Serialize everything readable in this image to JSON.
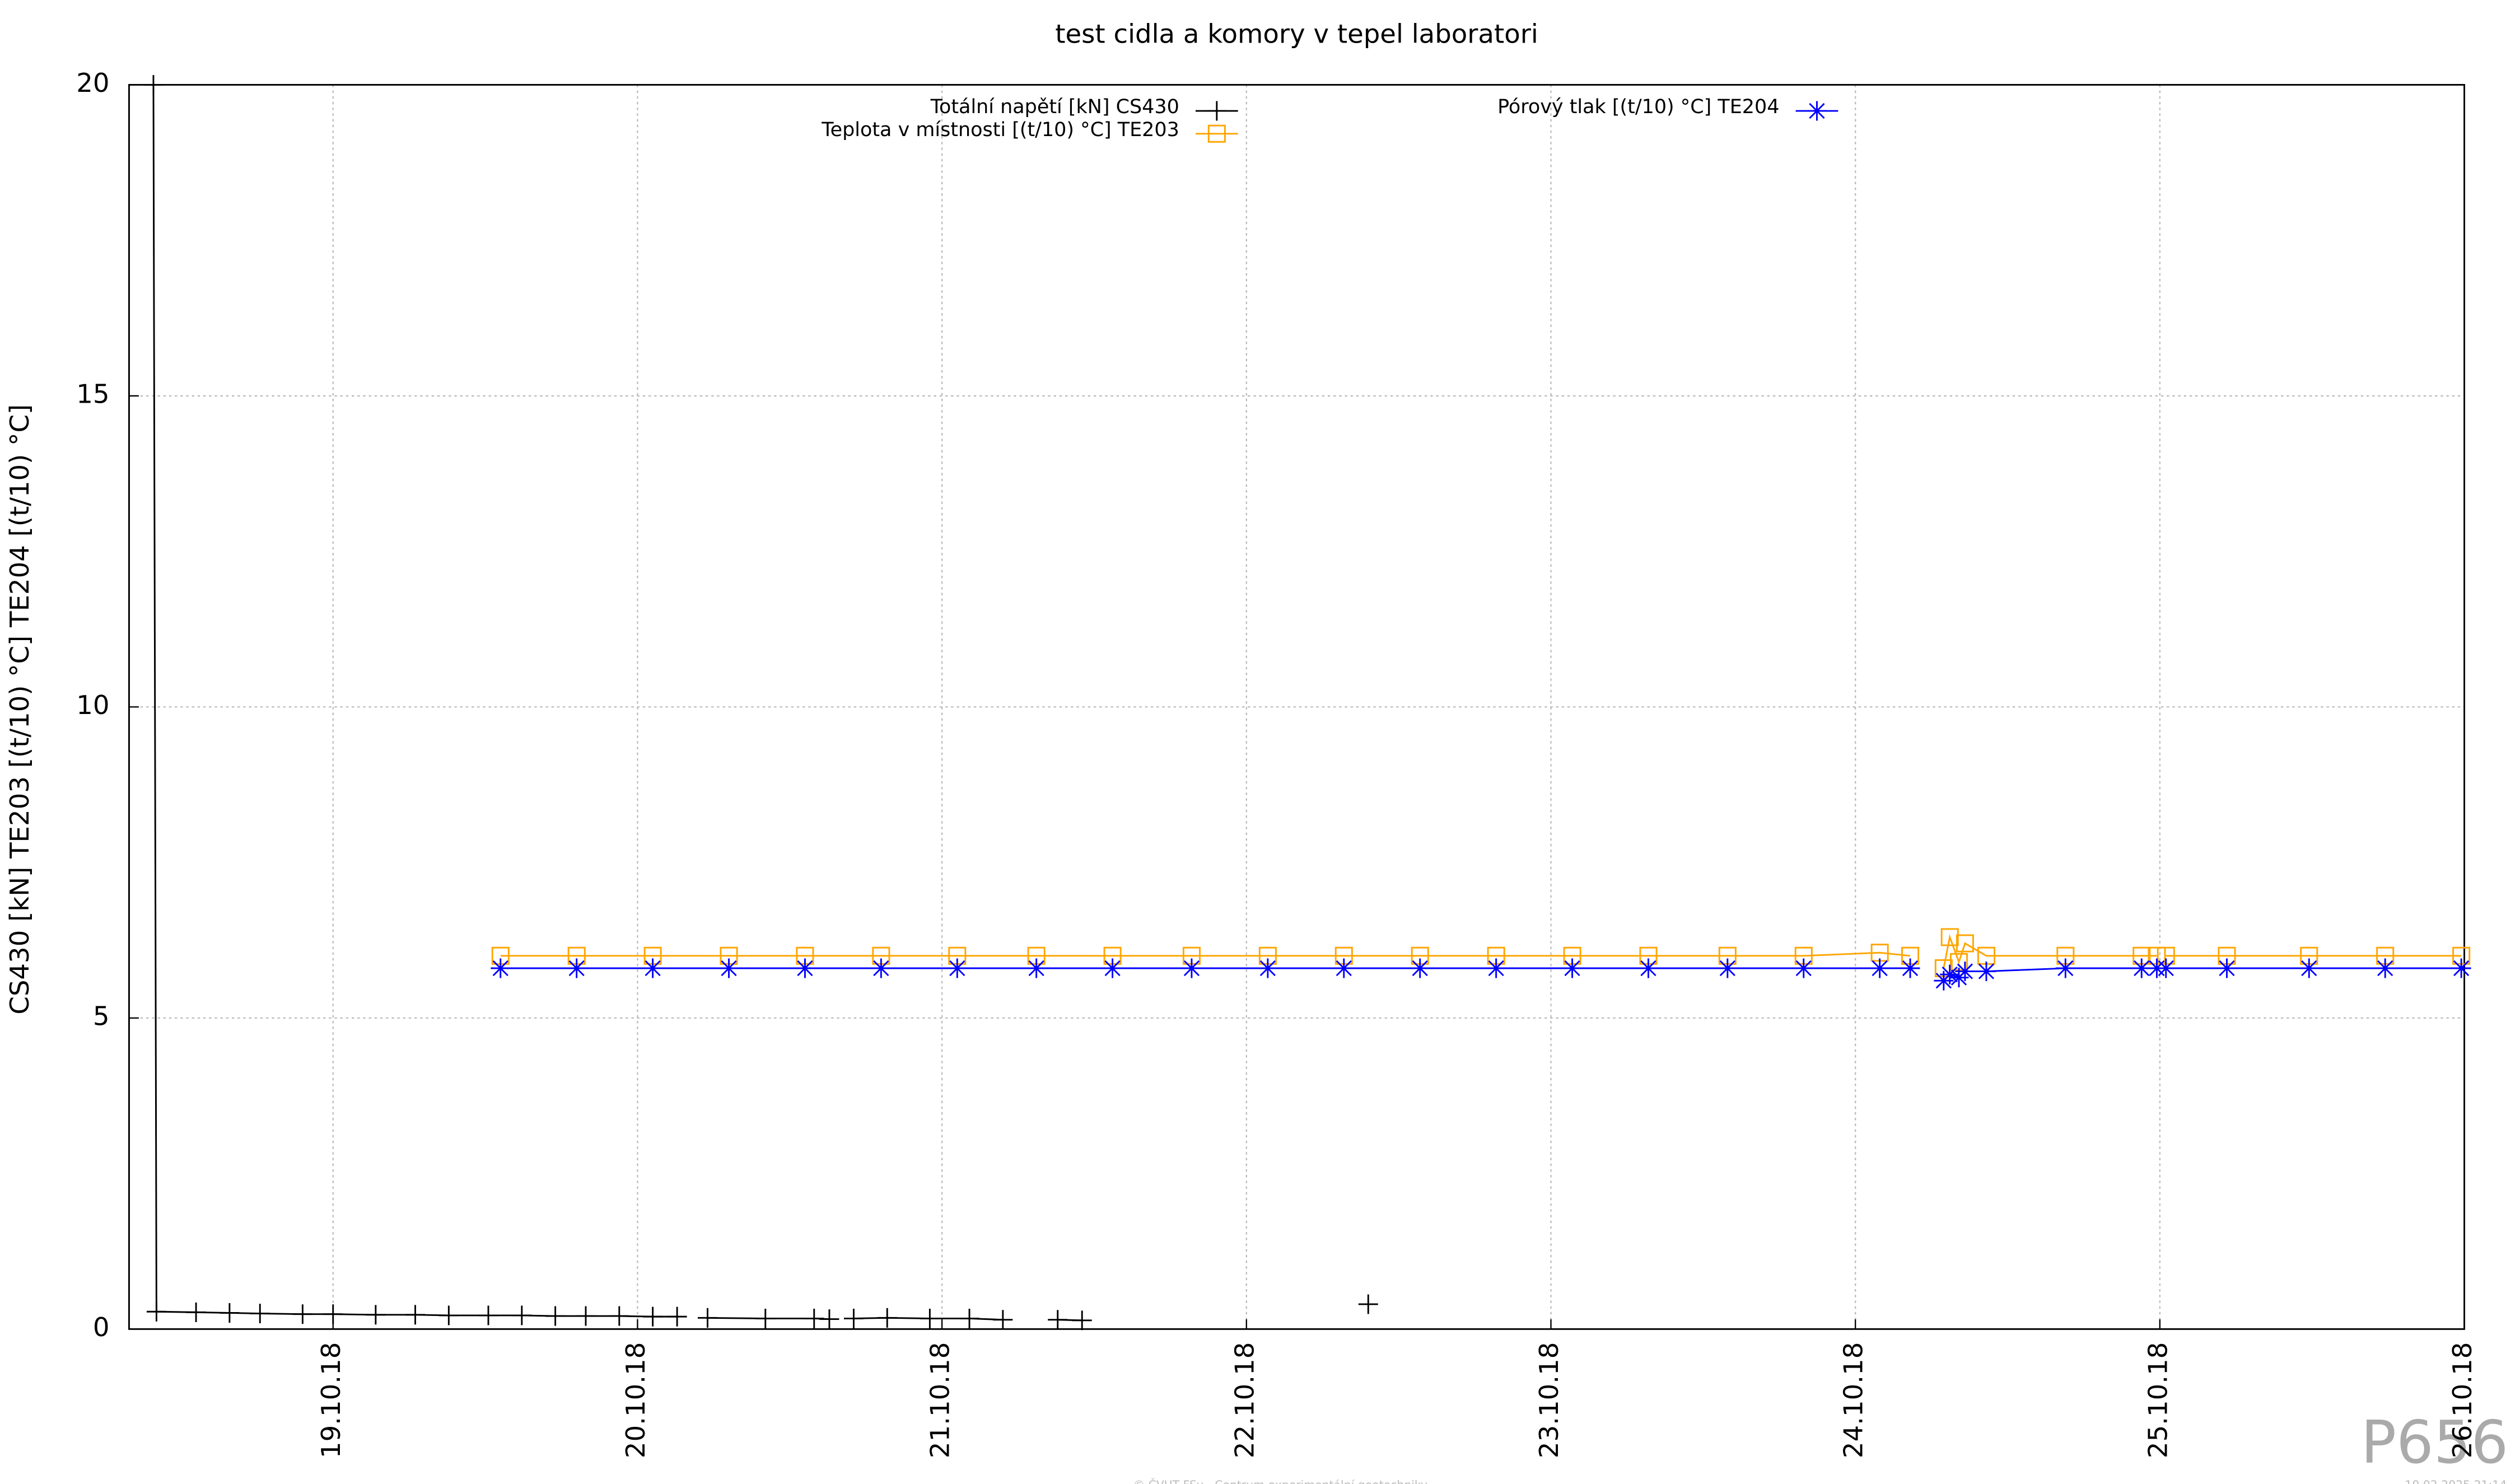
{
  "chart_data": {
    "type": "line",
    "title": "test cidla a komory v tepel laboratori",
    "y_label": "CS430 [kN] TE203 [(t/10) °C] TE204 [(t/10) °C]",
    "xlim": [
      18.33,
      26.0
    ],
    "xticks": [
      {
        "value": 19,
        "label": "19.10.18"
      },
      {
        "value": 20,
        "label": "20.10.18"
      },
      {
        "value": 21,
        "label": "21.10.18"
      },
      {
        "value": 22,
        "label": "22.10.18"
      },
      {
        "value": 23,
        "label": "23.10.18"
      },
      {
        "value": 24,
        "label": "24.10.18"
      },
      {
        "value": 25,
        "label": "25.10.18"
      },
      {
        "value": 26,
        "label": "26.10.18"
      }
    ],
    "ylim": [
      0,
      20
    ],
    "yticks": [
      0,
      5,
      10,
      15,
      20
    ],
    "grid": true,
    "series": [
      {
        "name": "Totální napětí [kN] CS430",
        "color": "#000000",
        "marker": "plus",
        "x": [
          18.41,
          18.42,
          18.55,
          18.66,
          18.76,
          18.9,
          19.0,
          19.14,
          19.27,
          19.38,
          19.51,
          19.62,
          19.73,
          19.83,
          19.94,
          20.05,
          20.13,
          20.18,
          20.23,
          20.42,
          20.58,
          20.63,
          20.67,
          20.71,
          20.82,
          20.96,
          21.09,
          21.2,
          21.29,
          21.38,
          21.46,
          21.92,
          22.4
        ],
        "values": [
          20,
          0.28,
          0.27,
          0.26,
          0.25,
          0.24,
          0.24,
          0.23,
          0.23,
          0.22,
          0.22,
          0.22,
          0.21,
          0.21,
          0.21,
          0.2,
          0.2,
          null,
          0.18,
          0.17,
          0.17,
          0.16,
          null,
          0.17,
          0.18,
          0.17,
          0.17,
          0.15,
          null,
          0.15,
          0.14,
          null,
          0.4
        ]
      },
      {
        "name": "Teplota v místnosti [(t/10) °C] TE203",
        "color": "#ffa500",
        "marker": "square",
        "x": [
          19.55,
          19.8,
          20.05,
          20.3,
          20.55,
          20.8,
          21.05,
          21.31,
          21.56,
          21.82,
          22.07,
          22.32,
          22.57,
          22.82,
          23.07,
          23.32,
          23.58,
          23.83,
          24.08,
          24.18,
          24.23,
          24.29,
          24.31,
          24.34,
          24.36,
          24.43,
          24.69,
          24.94,
          24.99,
          25.01,
          25.02,
          25.22,
          25.49,
          25.74,
          25.99
        ],
        "values": [
          6.0,
          6.0,
          6.0,
          6.0,
          6.0,
          6.0,
          6.0,
          6.0,
          6.0,
          6.0,
          6.0,
          6.0,
          6.0,
          6.0,
          6.0,
          6.0,
          6.0,
          6.0,
          6.05,
          6.0,
          null,
          5.8,
          6.3,
          5.9,
          6.2,
          6.0,
          6.0,
          6.0,
          6.0,
          null,
          6.0,
          6.0,
          6.0,
          6.0,
          6.0
        ]
      },
      {
        "name": "Pórový tlak [(t/10) °C] TE204",
        "color": "#0000ff",
        "marker": "star",
        "x": [
          19.55,
          19.8,
          20.05,
          20.3,
          20.55,
          20.8,
          21.05,
          21.31,
          21.56,
          21.82,
          22.07,
          22.32,
          22.57,
          22.82,
          23.07,
          23.32,
          23.58,
          23.83,
          24.08,
          24.18,
          24.23,
          24.29,
          24.31,
          24.34,
          24.36,
          24.43,
          24.69,
          24.94,
          24.99,
          25.01,
          25.02,
          25.22,
          25.49,
          25.74,
          25.99
        ],
        "values": [
          5.8,
          5.8,
          5.8,
          5.8,
          5.8,
          5.8,
          5.8,
          5.8,
          5.8,
          5.8,
          5.8,
          5.8,
          5.8,
          5.8,
          5.8,
          5.8,
          5.8,
          5.8,
          5.8,
          5.8,
          null,
          5.6,
          5.7,
          5.65,
          5.75,
          5.75,
          5.8,
          5.8,
          5.8,
          null,
          5.8,
          5.8,
          5.8,
          5.8,
          5.8
        ]
      }
    ]
  },
  "watermark": "P656",
  "footer": "© ČVUT FSv - Centrum experimentální geotechniky",
  "timestamp": "10.02.2025 21:14"
}
